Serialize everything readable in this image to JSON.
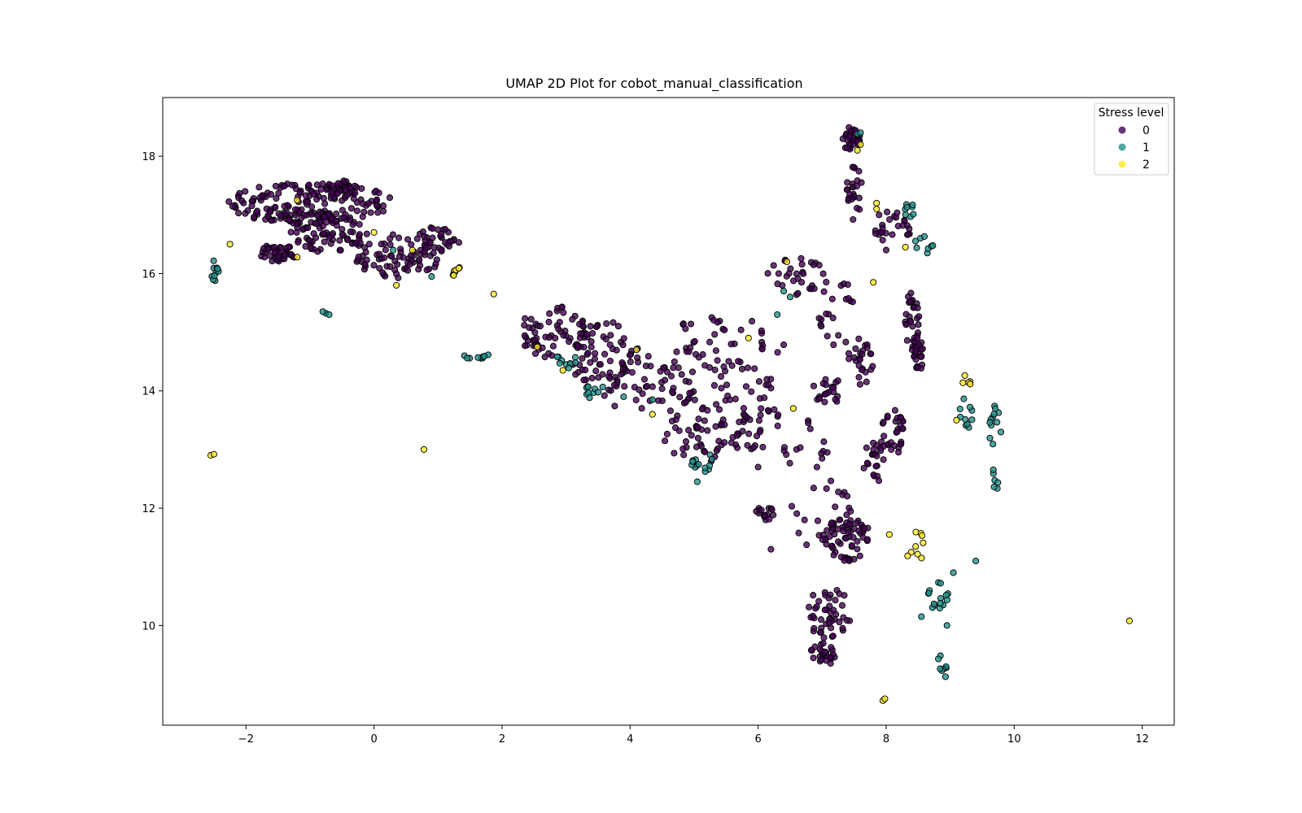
{
  "chart_data": {
    "type": "scatter",
    "title": "UMAP 2D Plot for cobot_manual_classification",
    "xlabel": "",
    "ylabel": "",
    "xlim": [
      -3.3,
      12.5
    ],
    "ylim": [
      8.3,
      19.0
    ],
    "xticks": [
      -2,
      0,
      2,
      4,
      6,
      8,
      10,
      12
    ],
    "xtick_labels": [
      "−2",
      "0",
      "2",
      "4",
      "6",
      "8",
      "10",
      "12"
    ],
    "yticks": [
      10,
      12,
      14,
      16,
      18
    ],
    "ytick_labels": [
      "10",
      "12",
      "14",
      "16",
      "18"
    ],
    "grid": false,
    "legend": {
      "title": "Stress level",
      "placement": "top-right"
    },
    "series": [
      {
        "name": "0",
        "color": "#440154",
        "clusters": [
          {
            "cx": -1.0,
            "cy": 17.2,
            "rx": 1.3,
            "ry": 0.35,
            "n": 170
          },
          {
            "cx": -0.5,
            "cy": 17.45,
            "rx": 0.25,
            "ry": 0.15,
            "n": 30
          },
          {
            "cx": -1.5,
            "cy": 16.35,
            "rx": 0.3,
            "ry": 0.15,
            "n": 40
          },
          {
            "cx": -0.7,
            "cy": 16.7,
            "rx": 0.6,
            "ry": 0.35,
            "n": 80
          },
          {
            "cx": 0.4,
            "cy": 16.3,
            "rx": 0.7,
            "ry": 0.4,
            "n": 80
          },
          {
            "cx": 1.0,
            "cy": 16.6,
            "rx": 0.4,
            "ry": 0.2,
            "n": 25
          },
          {
            "cx": 2.8,
            "cy": 15.0,
            "rx": 0.55,
            "ry": 0.45,
            "n": 60
          },
          {
            "cx": 3.6,
            "cy": 14.6,
            "rx": 0.55,
            "ry": 0.6,
            "n": 70
          },
          {
            "cx": 4.3,
            "cy": 14.1,
            "rx": 0.8,
            "ry": 0.5,
            "n": 50
          },
          {
            "cx": 5.0,
            "cy": 13.3,
            "rx": 0.5,
            "ry": 0.6,
            "n": 45
          },
          {
            "cx": 5.8,
            "cy": 13.7,
            "rx": 0.6,
            "ry": 0.8,
            "n": 60
          },
          {
            "cx": 5.5,
            "cy": 14.8,
            "rx": 1.0,
            "ry": 0.5,
            "n": 45
          },
          {
            "cx": 6.6,
            "cy": 15.9,
            "rx": 0.5,
            "ry": 0.4,
            "n": 30
          },
          {
            "cx": 7.1,
            "cy": 14.0,
            "rx": 0.3,
            "ry": 0.2,
            "n": 20
          },
          {
            "cx": 7.6,
            "cy": 14.5,
            "rx": 0.2,
            "ry": 0.4,
            "n": 25
          },
          {
            "cx": 7.45,
            "cy": 18.3,
            "rx": 0.15,
            "ry": 0.2,
            "n": 30
          },
          {
            "cx": 7.5,
            "cy": 17.4,
            "rx": 0.12,
            "ry": 0.5,
            "n": 25
          },
          {
            "cx": 8.1,
            "cy": 16.8,
            "rx": 0.3,
            "ry": 0.3,
            "n": 25
          },
          {
            "cx": 8.4,
            "cy": 15.2,
            "rx": 0.12,
            "ry": 0.5,
            "n": 30
          },
          {
            "cx": 8.5,
            "cy": 14.6,
            "rx": 0.1,
            "ry": 0.3,
            "n": 20
          },
          {
            "cx": 8.1,
            "cy": 13.3,
            "rx": 0.2,
            "ry": 0.4,
            "n": 30
          },
          {
            "cx": 7.8,
            "cy": 12.8,
            "rx": 0.2,
            "ry": 0.4,
            "n": 20
          },
          {
            "cx": 6.1,
            "cy": 11.9,
            "rx": 0.15,
            "ry": 0.15,
            "n": 15
          },
          {
            "cx": 7.4,
            "cy": 11.5,
            "rx": 0.35,
            "ry": 0.4,
            "n": 60
          },
          {
            "cx": 7.0,
            "cy": 11.9,
            "rx": 0.5,
            "ry": 0.6,
            "n": 25
          },
          {
            "cx": 7.1,
            "cy": 10.2,
            "rx": 0.35,
            "ry": 0.45,
            "n": 45
          },
          {
            "cx": 7.0,
            "cy": 9.5,
            "rx": 0.2,
            "ry": 0.2,
            "n": 25
          },
          {
            "cx": 7.25,
            "cy": 15.3,
            "rx": 0.3,
            "ry": 0.6,
            "n": 20
          },
          {
            "cx": 6.8,
            "cy": 13.0,
            "rx": 0.4,
            "ry": 0.5,
            "n": 15
          }
        ],
        "points": [
          [
            6.2,
            11.3
          ],
          [
            6.0,
            12.7
          ],
          [
            8.0,
            16.4
          ]
        ]
      },
      {
        "name": "1",
        "color": "#21918c",
        "clusters": [
          {
            "cx": -2.5,
            "cy": 16.1,
            "rx": 0.08,
            "ry": 0.25,
            "n": 10
          },
          {
            "cx": 1.6,
            "cy": 14.6,
            "rx": 0.2,
            "ry": 0.1,
            "n": 9
          },
          {
            "cx": 3.0,
            "cy": 14.5,
            "rx": 0.2,
            "ry": 0.15,
            "n": 10
          },
          {
            "cx": 3.4,
            "cy": 14.0,
            "rx": 0.25,
            "ry": 0.15,
            "n": 10
          },
          {
            "cx": 5.1,
            "cy": 12.8,
            "rx": 0.2,
            "ry": 0.2,
            "n": 12
          },
          {
            "cx": 8.35,
            "cy": 17.1,
            "rx": 0.1,
            "ry": 0.15,
            "n": 8
          },
          {
            "cx": 8.6,
            "cy": 16.5,
            "rx": 0.15,
            "ry": 0.2,
            "n": 8
          },
          {
            "cx": 9.2,
            "cy": 13.6,
            "rx": 0.15,
            "ry": 0.3,
            "n": 10
          },
          {
            "cx": 9.7,
            "cy": 13.4,
            "rx": 0.1,
            "ry": 0.4,
            "n": 12
          },
          {
            "cx": 9.7,
            "cy": 12.5,
            "rx": 0.05,
            "ry": 0.25,
            "n": 6
          },
          {
            "cx": 8.8,
            "cy": 10.5,
            "rx": 0.2,
            "ry": 0.25,
            "n": 15
          },
          {
            "cx": 8.9,
            "cy": 9.3,
            "rx": 0.15,
            "ry": 0.2,
            "n": 8
          }
        ],
        "points": [
          [
            -0.75,
            15.32
          ],
          [
            -0.8,
            15.35
          ],
          [
            -0.7,
            15.3
          ],
          [
            0.3,
            16.4
          ],
          [
            0.9,
            15.95
          ],
          [
            7.55,
            18.38
          ],
          [
            7.6,
            18.4
          ],
          [
            6.3,
            15.3
          ],
          [
            6.4,
            15.7
          ],
          [
            6.5,
            15.6
          ],
          [
            3.9,
            13.9
          ],
          [
            4.35,
            13.85
          ],
          [
            8.95,
            10.0
          ],
          [
            9.05,
            10.9
          ],
          [
            9.4,
            11.1
          ],
          [
            8.55,
            10.15
          ],
          [
            5.05,
            12.45
          ]
        ]
      },
      {
        "name": "2",
        "color": "#fde725",
        "clusters": [
          {
            "cx": 1.3,
            "cy": 15.95,
            "rx": 0.08,
            "ry": 0.2,
            "n": 7
          },
          {
            "cx": 9.25,
            "cy": 14.15,
            "rx": 0.12,
            "ry": 0.12,
            "n": 5
          },
          {
            "cx": 8.45,
            "cy": 11.35,
            "rx": 0.15,
            "ry": 0.3,
            "n": 9
          }
        ],
        "points": [
          [
            -2.55,
            12.9
          ],
          [
            -2.5,
            12.92
          ],
          [
            0.78,
            13.0
          ],
          [
            1.87,
            15.65
          ],
          [
            -2.25,
            16.5
          ],
          [
            -1.2,
            17.25
          ],
          [
            -1.2,
            16.28
          ],
          [
            0.0,
            16.7
          ],
          [
            0.6,
            16.4
          ],
          [
            0.35,
            15.8
          ],
          [
            2.55,
            14.75
          ],
          [
            2.95,
            14.35
          ],
          [
            4.1,
            14.7
          ],
          [
            4.35,
            13.6
          ],
          [
            5.85,
            14.9
          ],
          [
            6.45,
            16.2
          ],
          [
            6.55,
            13.7
          ],
          [
            7.6,
            18.2
          ],
          [
            7.55,
            18.1
          ],
          [
            7.85,
            17.2
          ],
          [
            7.85,
            17.1
          ],
          [
            7.8,
            15.85
          ],
          [
            8.3,
            16.45
          ],
          [
            7.95,
            8.72
          ],
          [
            7.98,
            8.75
          ],
          [
            9.1,
            13.5
          ],
          [
            11.8,
            10.08
          ],
          [
            8.05,
            11.55
          ]
        ]
      }
    ]
  }
}
